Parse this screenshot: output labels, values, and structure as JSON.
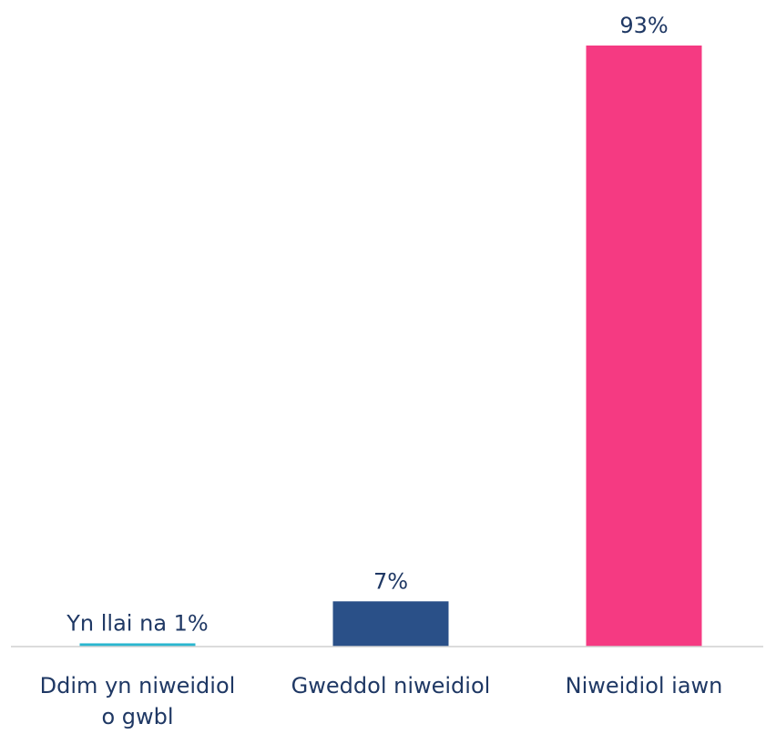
{
  "chart_data": {
    "type": "bar",
    "categories": [
      [
        "Ddim yn niweidiol",
        "o gwbl"
      ],
      [
        "Gweddol niweidiol"
      ],
      [
        "Niweidiol iawn"
      ]
    ],
    "values": [
      0.5,
      7,
      93
    ],
    "data_labels": [
      "Yn llai na 1%",
      "7%",
      "93%"
    ],
    "colors": [
      "#29b6cf",
      "#2a5088",
      "#f53a82"
    ],
    "label_color": "#1f3864",
    "ylim": [
      0,
      93
    ],
    "grid": false,
    "legend": "none"
  }
}
